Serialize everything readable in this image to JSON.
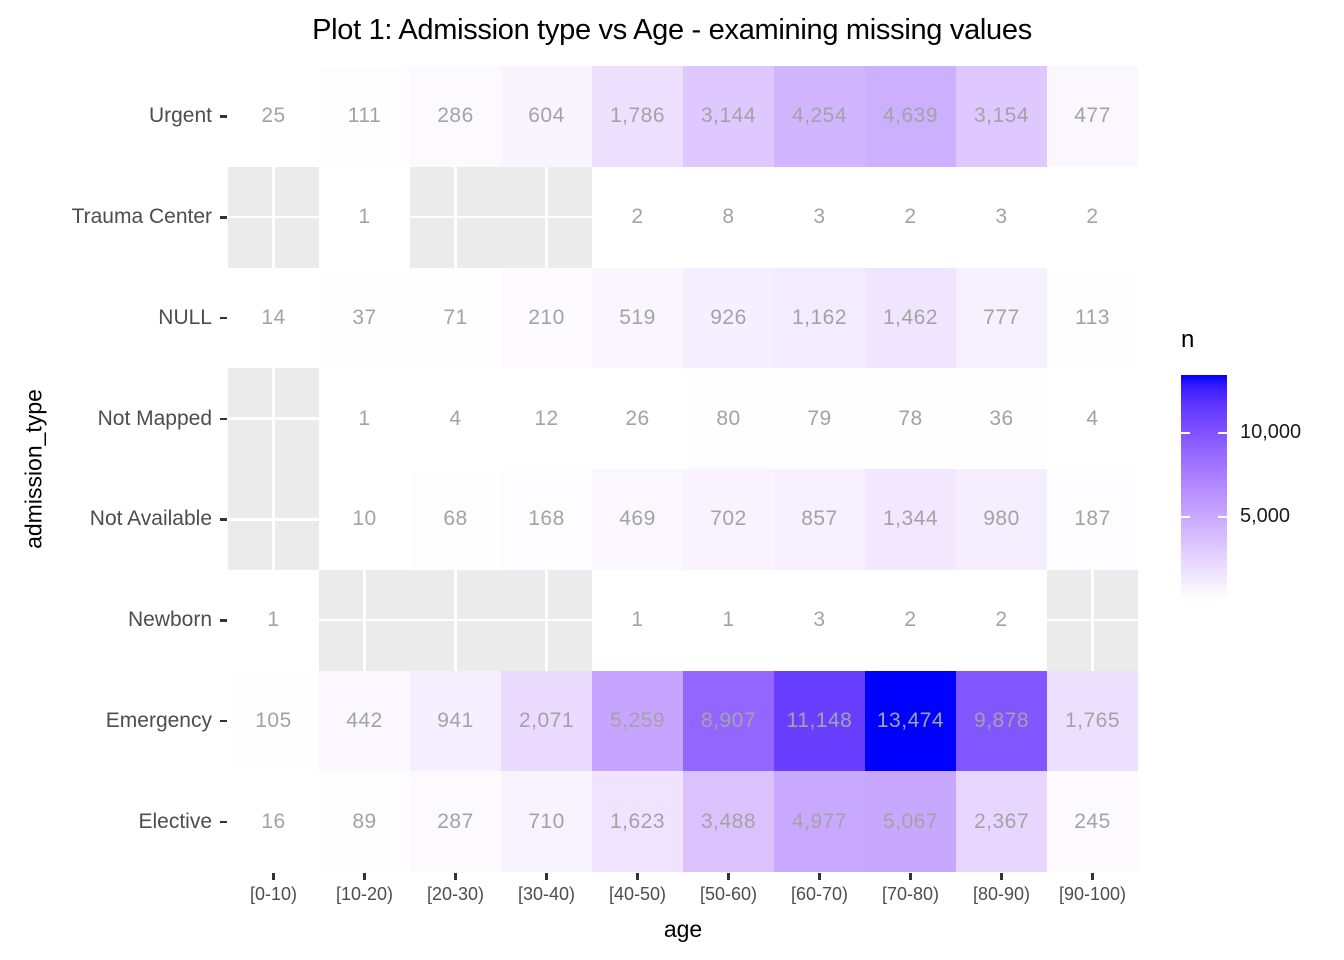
{
  "title": "Plot 1: Admission type vs Age - examining missing values",
  "colors": {
    "panel_background": "#EBEBEB",
    "gridline": "#FFFFFF",
    "na_cell": "#EBEBEB",
    "cell_text": "#A3A3A3",
    "axis_text": "#4D4D4D",
    "tick_mark": "#333333",
    "title_text": "#000000",
    "gradient_low": "#FFFFFF",
    "gradient_high": "#0000FF"
  },
  "chart_data": {
    "type": "heatmap",
    "title": "Plot 1: Admission type vs Age - examining missing values",
    "xlabel": "age",
    "ylabel": "admission_type",
    "x_categories": [
      "[0-10)",
      "[10-20)",
      "[20-30)",
      "[30-40)",
      "[40-50)",
      "[50-60)",
      "[60-70)",
      "[70-80)",
      "[80-90)",
      "[90-100)"
    ],
    "y_categories_top_to_bottom": [
      "Urgent",
      "Trauma Center",
      "NULL",
      "Not Mapped",
      "Not Available",
      "Newborn",
      "Emergency",
      "Elective"
    ],
    "rows": [
      {
        "label": "Urgent",
        "values": [
          25,
          111,
          286,
          604,
          1786,
          3144,
          4254,
          4639,
          3154,
          477
        ]
      },
      {
        "label": "Trauma Center",
        "values": [
          null,
          1,
          null,
          null,
          2,
          8,
          3,
          2,
          3,
          2
        ]
      },
      {
        "label": "NULL",
        "values": [
          14,
          37,
          71,
          210,
          519,
          926,
          1162,
          1462,
          777,
          113
        ]
      },
      {
        "label": "Not Mapped",
        "values": [
          null,
          1,
          4,
          12,
          26,
          80,
          79,
          78,
          36,
          4
        ]
      },
      {
        "label": "Not Available",
        "values": [
          null,
          10,
          68,
          168,
          469,
          702,
          857,
          1344,
          980,
          187
        ]
      },
      {
        "label": "Newborn",
        "values": [
          1,
          null,
          null,
          null,
          1,
          1,
          3,
          2,
          2,
          null
        ]
      },
      {
        "label": "Emergency",
        "values": [
          105,
          442,
          941,
          2071,
          5259,
          8907,
          11148,
          13474,
          9878,
          1765
        ]
      },
      {
        "label": "Elective",
        "values": [
          16,
          89,
          287,
          710,
          1623,
          3488,
          4977,
          5067,
          2367,
          245
        ]
      }
    ],
    "na_cells_shown_as": "gray panel background",
    "grid": "white major gridlines at category centers",
    "legend": {
      "title": "n",
      "position": "right",
      "min": 0,
      "max": 13474,
      "ticks": [
        5000,
        10000
      ],
      "tick_labels": [
        "5,000",
        "10,000"
      ],
      "low_color": "#FFFFFF",
      "high_color": "#0000FF"
    }
  }
}
